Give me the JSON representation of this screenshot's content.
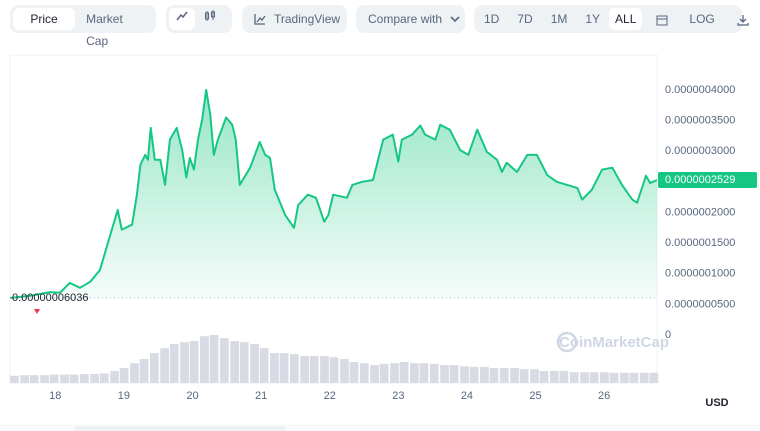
{
  "toolbar": {
    "tabs": [
      "Price",
      "Market Cap"
    ],
    "tradingview": "TradingView",
    "compare": "Compare with",
    "ranges": [
      "1D",
      "7D",
      "1M",
      "1Y",
      "ALL"
    ],
    "log": "LOG"
  },
  "watermark": "CoinMarketCap",
  "currency": "USD",
  "chart_data": [
    {
      "type": "line",
      "x": [
        17.34,
        17.63,
        17.92,
        18.07,
        18.21,
        18.36,
        18.51,
        18.65,
        18.8,
        18.91,
        18.97,
        19.12,
        19.19,
        19.24,
        19.31,
        19.35,
        19.39,
        19.45,
        19.53,
        19.6,
        19.67,
        19.77,
        19.85,
        19.91,
        19.96,
        20.02,
        20.08,
        20.14,
        20.2,
        20.26,
        20.31,
        20.37,
        20.49,
        20.58,
        20.63,
        20.69,
        20.84,
        20.98,
        21.06,
        21.13,
        21.2,
        21.35,
        21.48,
        21.54,
        21.68,
        21.8,
        21.92,
        21.98,
        22.05,
        22.25,
        22.33,
        22.47,
        22.63,
        22.78,
        22.92,
        23.0,
        23.05,
        23.2,
        23.32,
        23.39,
        23.54,
        23.61,
        23.75,
        23.9,
        24.02,
        24.15,
        24.29,
        24.44,
        24.51,
        24.58,
        24.73,
        24.88,
        25.02,
        25.17,
        25.31,
        25.46,
        25.61,
        25.68,
        25.82,
        25.97,
        26.12,
        26.26,
        26.41,
        26.48,
        26.61,
        26.67,
        26.77
      ],
      "series": [
        {
          "color": "#16c784",
          "values": [
            6.036e-08,
            6.4e-08,
            7e-08,
            6.9e-08,
            8.5e-08,
            7.7e-08,
            8.7e-08,
            1.06e-07,
            1.63e-07,
            2.04e-07,
            1.72e-07,
            1.8e-07,
            2.29e-07,
            2.78e-07,
            2.94e-07,
            2.86e-07,
            3.38e-07,
            2.86e-07,
            2.86e-07,
            2.45e-07,
            3.19e-07,
            3.38e-07,
            3.02e-07,
            2.57e-07,
            2.89e-07,
            2.7e-07,
            3.19e-07,
            3.51e-07,
            4e-07,
            3.59e-07,
            2.94e-07,
            3.19e-07,
            3.55e-07,
            3.43e-07,
            3.19e-07,
            2.45e-07,
            2.73e-07,
            3.15e-07,
            2.94e-07,
            2.89e-07,
            2.37e-07,
            1.96e-07,
            1.75e-07,
            2.12e-07,
            2.29e-07,
            2.24e-07,
            1.85e-07,
            1.96e-07,
            2.29e-07,
            2.24e-07,
            2.45e-07,
            2.5e-07,
            2.53e-07,
            3.19e-07,
            3.27e-07,
            2.83e-07,
            3.19e-07,
            3.27e-07,
            3.42e-07,
            3.27e-07,
            3.19e-07,
            3.43e-07,
            3.35e-07,
            3.02e-07,
            2.94e-07,
            3.35e-07,
            2.99e-07,
            2.86e-07,
            2.66e-07,
            2.81e-07,
            2.66e-07,
            2.94e-07,
            2.94e-07,
            2.61e-07,
            2.5e-07,
            2.45e-07,
            2.4e-07,
            2.21e-07,
            2.37e-07,
            2.7e-07,
            2.73e-07,
            2.45e-07,
            2.21e-07,
            2.16e-07,
            2.6e-07,
            2.48e-07,
            2.529e-07
          ]
        }
      ],
      "xlim": [
        17.34,
        26.77
      ],
      "xticks": [
        18,
        19,
        20,
        21,
        22,
        23,
        24,
        25,
        26
      ],
      "ylim": [
        0,
        4.57e-07
      ],
      "yticks": [
        0,
        {
          "value": 5e-08,
          "label": "0.0000000500"
        },
        {
          "value": 1e-07,
          "label": "0.0000001000"
        },
        {
          "value": 1.5e-07,
          "label": "0.0000001500"
        },
        {
          "value": 2e-07,
          "label": "0.0000002000"
        },
        {
          "value": 2.5e-07,
          "label": "0.0000002500"
        },
        {
          "value": 3e-07,
          "label": "0.0000003000"
        },
        {
          "value": 3.5e-07,
          "label": "0.0000003500"
        },
        {
          "value": 4e-07,
          "label": "0.0000004000"
        }
      ],
      "annotations": [
        {
          "label": "0.00000006036",
          "value": 6.036e-08
        },
        {
          "label": "0.0000002529",
          "value": 2.529e-07
        }
      ]
    },
    {
      "type": "bar",
      "color": "#d8dbe3",
      "x": [
        17.34,
        17.49,
        17.63,
        17.78,
        17.92,
        18.07,
        18.21,
        18.36,
        18.51,
        18.65,
        18.8,
        18.94,
        19.09,
        19.23,
        19.38,
        19.53,
        19.67,
        19.82,
        19.96,
        20.11,
        20.25,
        20.4,
        20.55,
        20.69,
        20.84,
        20.98,
        21.13,
        21.27,
        21.42,
        21.57,
        21.71,
        21.86,
        22.0,
        22.15,
        22.29,
        22.44,
        22.59,
        22.73,
        22.88,
        23.02,
        23.17,
        23.31,
        23.46,
        23.61,
        23.75,
        23.9,
        24.04,
        24.19,
        24.33,
        24.48,
        24.63,
        24.77,
        24.92,
        25.06,
        25.21,
        25.35,
        25.5,
        25.65,
        25.79,
        25.94,
        26.08,
        26.23,
        26.37,
        26.52,
        26.66
      ],
      "values": [
        12,
        13,
        13,
        13,
        14,
        14,
        14,
        15,
        15,
        16,
        20,
        25,
        33,
        40,
        50,
        58,
        65,
        68,
        70,
        78,
        80,
        75,
        70,
        68,
        65,
        58,
        50,
        50,
        48,
        45,
        45,
        45,
        43,
        40,
        35,
        33,
        30,
        32,
        33,
        35,
        33,
        33,
        32,
        30,
        30,
        28,
        27,
        27,
        25,
        25,
        25,
        23,
        23,
        20,
        20,
        20,
        18,
        18,
        18,
        18,
        17,
        17,
        17,
        17,
        17
      ],
      "ylim": [
        0,
        100
      ]
    }
  ]
}
